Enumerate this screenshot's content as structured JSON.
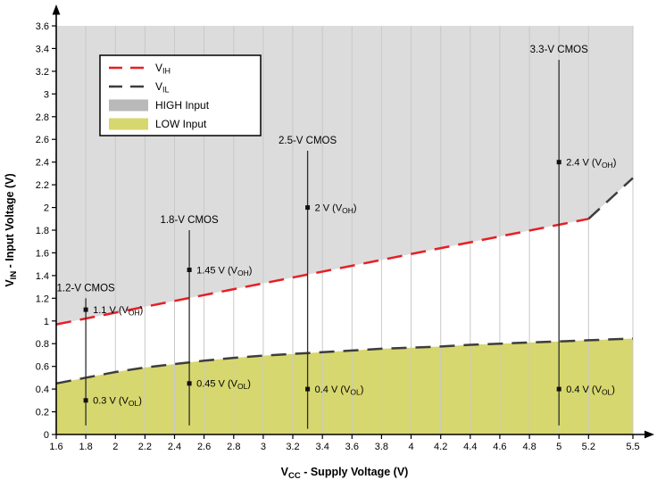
{
  "chart_data": {
    "type": "line",
    "title": "",
    "xlabel": "V_{CC} - Supply Voltage (V)",
    "ylabel": "V_{IN} - Input Voltage (V)",
    "xlim": [
      1.6,
      5.5
    ],
    "ylim": [
      0,
      3.6
    ],
    "x_ticks": [
      1.6,
      1.8,
      2,
      2.2,
      2.4,
      2.6,
      2.8,
      3,
      3.2,
      3.4,
      3.6,
      3.8,
      4,
      4.2,
      4.4,
      4.6,
      4.8,
      5,
      5.2,
      5.5
    ],
    "y_ticks": [
      0,
      0.2,
      0.4,
      0.6,
      0.8,
      1,
      1.2,
      1.4,
      1.6,
      1.8,
      2,
      2.2,
      2.4,
      2.6,
      2.8,
      3,
      3.2,
      3.4,
      3.6
    ],
    "grid": "vertical",
    "colors": {
      "vih_line": "#e81e25",
      "vil_line": "#3d3d3d",
      "high_region": "#dcdcdc",
      "low_region": "#d7d76f",
      "legend_high_swatch": "#b9b9b9",
      "gridline": "#c9c9c9",
      "axis": "#000000",
      "driver_line": "#2e2e2e"
    },
    "legend": {
      "position": "top-left",
      "entries": [
        {
          "label": "V_{IH}",
          "swatch": "line",
          "color": "#e81e25"
        },
        {
          "label": "V_{IL}",
          "swatch": "line",
          "color": "#3d3d3d"
        },
        {
          "label": "HIGH Input",
          "swatch": "fill",
          "color": "#b9b9b9"
        },
        {
          "label": "LOW Input",
          "swatch": "fill",
          "color": "#d7d76f"
        }
      ]
    },
    "series": [
      {
        "name": "VIH",
        "label": "V_{IH}",
        "style": "dashed",
        "color": "#e81e25",
        "points": [
          [
            1.6,
            0.97
          ],
          [
            5.2,
            1.9
          ]
        ]
      },
      {
        "name": "VIH-extension",
        "label": "",
        "style": "dashed",
        "color": "#3d3d3d",
        "points": [
          [
            5.2,
            1.9
          ],
          [
            5.5,
            2.26
          ]
        ]
      },
      {
        "name": "VIL",
        "label": "V_{IL}",
        "style": "dashed",
        "color": "#3d3d3d",
        "points": [
          [
            1.6,
            0.45
          ],
          [
            1.8,
            0.5
          ],
          [
            2.0,
            0.55
          ],
          [
            2.2,
            0.59
          ],
          [
            2.4,
            0.62
          ],
          [
            2.6,
            0.65
          ],
          [
            2.8,
            0.675
          ],
          [
            3.0,
            0.695
          ],
          [
            3.2,
            0.71
          ],
          [
            3.4,
            0.725
          ],
          [
            3.6,
            0.74
          ],
          [
            3.8,
            0.755
          ],
          [
            4.0,
            0.765
          ],
          [
            4.2,
            0.775
          ],
          [
            4.4,
            0.79
          ],
          [
            4.6,
            0.8
          ],
          [
            4.8,
            0.81
          ],
          [
            5.0,
            0.82
          ],
          [
            5.2,
            0.83
          ],
          [
            5.5,
            0.845
          ]
        ]
      }
    ],
    "regions": [
      {
        "name": "HIGH Input",
        "color": "#dcdcdc",
        "side": "above",
        "boundary": [
          "VIH",
          "VIH-extension"
        ]
      },
      {
        "name": "LOW Input",
        "color": "#d7d76f",
        "side": "below",
        "boundary": [
          "VIL"
        ]
      }
    ],
    "driver_annotations": [
      {
        "x": 1.8,
        "label": "1.2-V CMOS",
        "line_top": 1.2,
        "line_bottom": 0.08,
        "markers": [
          {
            "y": 1.1,
            "text": "1.1 V (V_{OH})"
          },
          {
            "y": 0.3,
            "text": "0.3 V (V_{OL})"
          }
        ]
      },
      {
        "x": 2.5,
        "label": "1.8-V CMOS",
        "line_top": 1.8,
        "line_bottom": 0.08,
        "markers": [
          {
            "y": 1.45,
            "text": "1.45 V (V_{OH})"
          },
          {
            "y": 0.45,
            "text": "0.45 V (V_{OL})"
          }
        ]
      },
      {
        "x": 3.3,
        "label": "2.5-V CMOS",
        "line_top": 2.5,
        "line_bottom": 0.05,
        "markers": [
          {
            "y": 2.0,
            "text": "2 V (V_{OH})"
          },
          {
            "y": 0.4,
            "text": "0.4 V (V_{OL})"
          }
        ]
      },
      {
        "x": 5.0,
        "label": "3.3-V CMOS",
        "line_top": 3.3,
        "line_bottom": 0.08,
        "markers": [
          {
            "y": 2.4,
            "text": "2.4 V (V_{OH})"
          },
          {
            "y": 0.4,
            "text": "0.4 V (V_{OL})"
          }
        ]
      }
    ]
  }
}
